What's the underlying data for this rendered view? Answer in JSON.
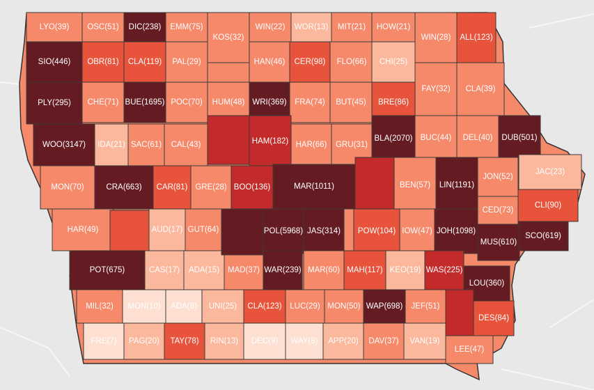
{
  "map": {
    "state": "Iowa",
    "scale_colors": [
      "#fde0d2",
      "#fcb89c",
      "#f7896b",
      "#e8533b",
      "#c32a2a",
      "#641c22"
    ],
    "counties": [
      {
        "label": "LYO(39)",
        "level": 2
      },
      {
        "label": "OSC(51)",
        "level": 2
      },
      {
        "label": "DIC(238)",
        "level": 5
      },
      {
        "label": "EMM(75)",
        "level": 2
      },
      {
        "label": "KOS(32)",
        "level": 2
      },
      {
        "label": "WIN(22)",
        "level": 2
      },
      {
        "label": "WOR(13)",
        "level": 1
      },
      {
        "label": "MIT(21)",
        "level": 2
      },
      {
        "label": "HOW(21)",
        "level": 2
      },
      {
        "label": "WIN(28)",
        "level": 2
      },
      {
        "label": "ALL(123)",
        "level": 3
      },
      {
        "label": "SIO(446)",
        "level": 5
      },
      {
        "label": "OBR(81)",
        "level": 3
      },
      {
        "label": "CLA(119)",
        "level": 3
      },
      {
        "label": "PAL(29)",
        "level": 2
      },
      {
        "label": "HAN(46)",
        "level": 2
      },
      {
        "label": "CER(98)",
        "level": 3
      },
      {
        "label": "FLO(66)",
        "level": 2
      },
      {
        "label": "CHI(25)",
        "level": 1
      },
      {
        "label": "FAY(32)",
        "level": 2
      },
      {
        "label": "CLA(39)",
        "level": 2
      },
      {
        "label": "PLY(295)",
        "level": 5
      },
      {
        "label": "CHE(71)",
        "level": 2
      },
      {
        "label": "BUE(1695)",
        "level": 5
      },
      {
        "label": "POC(70)",
        "level": 2
      },
      {
        "label": "HUM(48)",
        "level": 2
      },
      {
        "label": "WRI(369)",
        "level": 5
      },
      {
        "label": "FRA(74)",
        "level": 2
      },
      {
        "label": "BUT(45)",
        "level": 2
      },
      {
        "label": "BRE(86)",
        "level": 3
      },
      {
        "label": "WOO(3147)",
        "level": 5
      },
      {
        "label": "IDA(21)",
        "level": 1
      },
      {
        "label": "SAC(61)",
        "level": 2
      },
      {
        "label": "CAL(43)",
        "level": 2
      },
      {
        "label": "HAM(182)",
        "level": 4
      },
      {
        "label": "HAR(66)",
        "level": 2
      },
      {
        "label": "GRU(31)",
        "level": 2
      },
      {
        "label": "BLA(2070)",
        "level": 5
      },
      {
        "label": "BUC(44)",
        "level": 2
      },
      {
        "label": "DEL(40)",
        "level": 2
      },
      {
        "label": "DUB(501)",
        "level": 5
      },
      {
        "label": "JAC(23)",
        "level": 1
      },
      {
        "label": "MON(70)",
        "level": 2
      },
      {
        "label": "CRA(663)",
        "level": 5
      },
      {
        "label": "CAR(81)",
        "level": 3
      },
      {
        "label": "GRE(28)",
        "level": 2
      },
      {
        "label": "BOO(136)",
        "level": 4
      },
      {
        "label": "MAR(1011)",
        "level": 5
      },
      {
        "label": "BEN(57)",
        "level": 2
      },
      {
        "label": "LIN(1191)",
        "level": 5
      },
      {
        "label": "JON(52)",
        "level": 2
      },
      {
        "label": "CLI(90)",
        "level": 3
      },
      {
        "label": "CED(73)",
        "level": 2
      },
      {
        "label": "HAR(49)",
        "level": 2
      },
      {
        "label": "AUD(17)",
        "level": 1
      },
      {
        "label": "GUT(64)",
        "level": 2
      },
      {
        "label": "POL(5968)",
        "level": 5
      },
      {
        "label": "JAS(314)",
        "level": 5
      },
      {
        "label": "POW(104)",
        "level": 3
      },
      {
        "label": "IOW(47)",
        "level": 2
      },
      {
        "label": "JOH(1098)",
        "level": 5
      },
      {
        "label": "SCO(619)",
        "level": 5
      },
      {
        "label": "MUS(610)",
        "level": 5
      },
      {
        "label": "POT(675)",
        "level": 5
      },
      {
        "label": "CAS(17)",
        "level": 1
      },
      {
        "label": "ADA(15)",
        "level": 1
      },
      {
        "label": "MAD(37)",
        "level": 2
      },
      {
        "label": "WAR(239)",
        "level": 5
      },
      {
        "label": "MAR(60)",
        "level": 2
      },
      {
        "label": "MAH(117)",
        "level": 3
      },
      {
        "label": "KEO(19)",
        "level": 1
      },
      {
        "label": "WAS(225)",
        "level": 4
      },
      {
        "label": "LOU(360)",
        "level": 5
      },
      {
        "label": "MIL(32)",
        "level": 2
      },
      {
        "label": "MON(10)",
        "level": 0
      },
      {
        "label": "ADA(8)",
        "level": 0
      },
      {
        "label": "UNI(25)",
        "level": 1
      },
      {
        "label": "CLA(123)",
        "level": 3
      },
      {
        "label": "LUC(29)",
        "level": 2
      },
      {
        "label": "MON(50)",
        "level": 2
      },
      {
        "label": "WAP(698)",
        "level": 5
      },
      {
        "label": "JEF(51)",
        "level": 2
      },
      {
        "label": "DES(84)",
        "level": 3
      },
      {
        "label": "FRE(7)",
        "level": 0
      },
      {
        "label": "PAG(20)",
        "level": 1
      },
      {
        "label": "TAY(78)",
        "level": 3
      },
      {
        "label": "RIN(13)",
        "level": 1
      },
      {
        "label": "DEC(9)",
        "level": 0
      },
      {
        "label": "WAY(8)",
        "level": 0
      },
      {
        "label": "APP(20)",
        "level": 1
      },
      {
        "label": "DAV(37)",
        "level": 2
      },
      {
        "label": "VAN(19)",
        "level": 1
      },
      {
        "label": "LEE(47)",
        "level": 2
      },
      {
        "label": "",
        "level": 4
      },
      {
        "label": "",
        "level": 3
      },
      {
        "label": "",
        "level": 5
      },
      {
        "label": "",
        "level": 4
      },
      {
        "label": "",
        "level": 4
      }
    ]
  }
}
